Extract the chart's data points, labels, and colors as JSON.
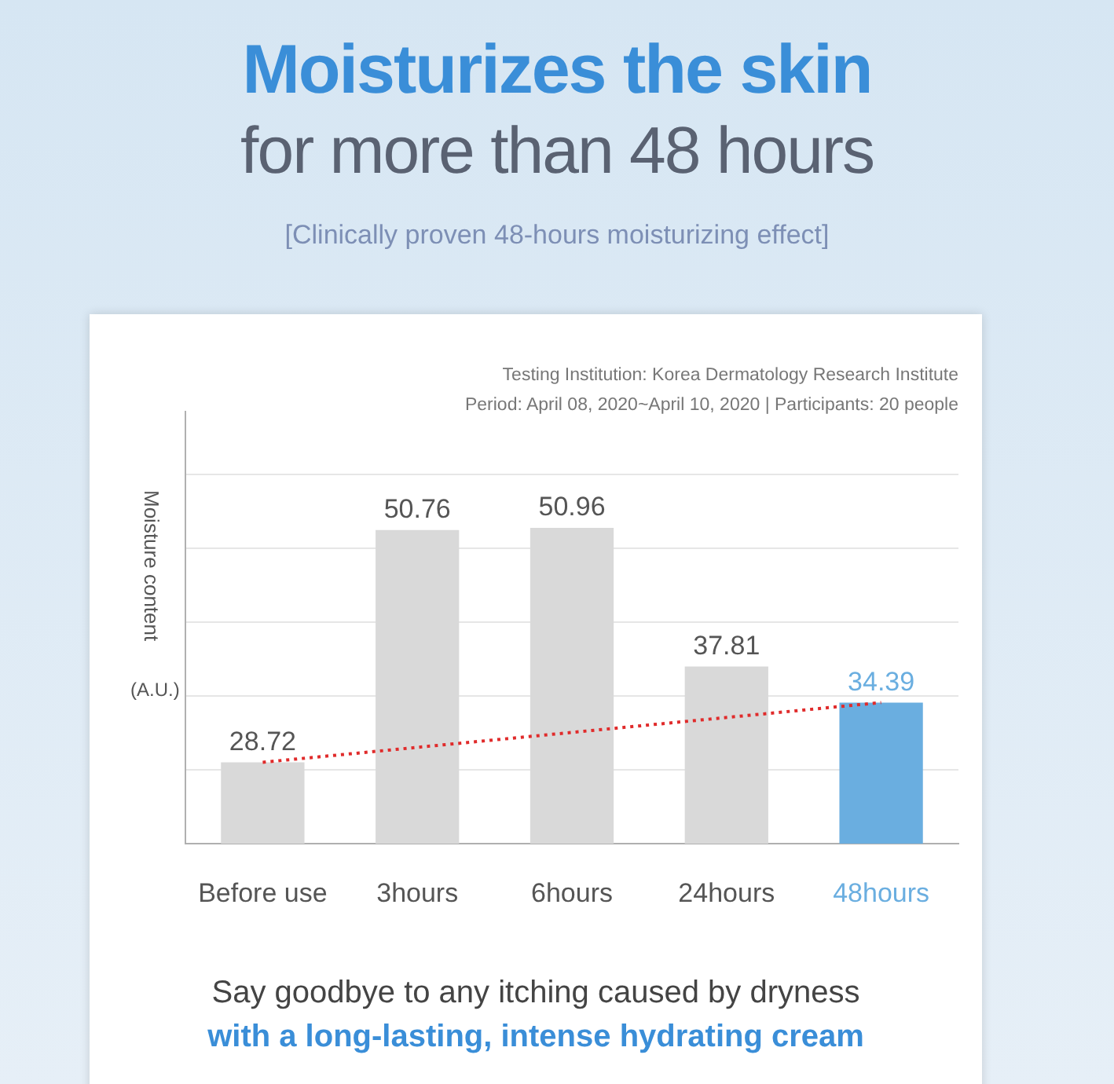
{
  "chart_data": {
    "type": "bar",
    "title": "Moisturizes the skin",
    "subtitle": "for more than 48 hours",
    "ylabel": "Moisture content",
    "annotations": [
      "[Clinically proven 48-hours moisturizing effect]",
      "Testing Institution: Korea Dermatology Research Institute",
      "Period: April 08, 2020~April 10, 2020 | Participants: 20 people",
      "(A.U.)",
      "Say goodbye to any itching caused by dryness",
      "with a long-lasting, intense hydrating cream"
    ],
    "categories": [
      "Before use",
      "3hours",
      "6hours",
      "24hours",
      "48hours"
    ],
    "values": [
      28.72,
      50.76,
      50.96,
      37.81,
      34.39
    ],
    "colors": [
      "#d9d9d9",
      "#d9d9d9",
      "#d9d9d9",
      "#d9d9d9",
      "#6aaee0"
    ],
    "series": [
      {
        "type": "line",
        "x": [
          "Before use",
          "48hours"
        ],
        "values": [
          28.72,
          34.39
        ],
        "color": "#e02b2b",
        "line_style": "dotted",
        "value_labels": [
          null,
          null
        ]
      }
    ],
    "ylim": [
      21,
      62
    ],
    "yticks": [
      {
        "value": 28,
        "label": null
      },
      {
        "value": 35,
        "label": null
      },
      {
        "value": 42,
        "label": null
      },
      {
        "value": 49,
        "label": null
      },
      {
        "value": 56,
        "label": null
      }
    ],
    "grid": "y",
    "data_labels": true,
    "legend": false
  }
}
